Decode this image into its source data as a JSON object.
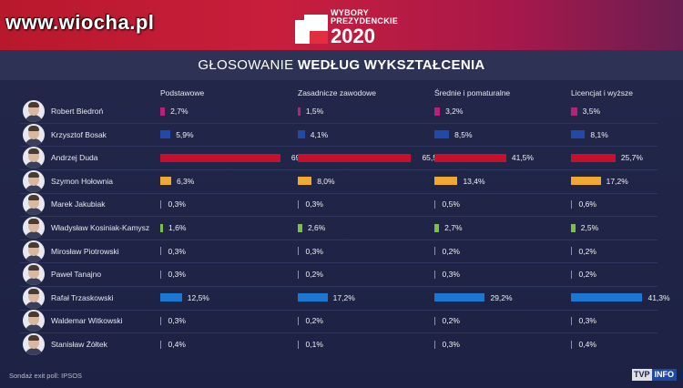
{
  "watermark": "www.wiocha.pl",
  "logo": {
    "line1": "WYBORY",
    "line2": "PREZYDENCKIE",
    "year": "2020"
  },
  "title": {
    "regular": "GŁOSOWANIE ",
    "bold": "WEDŁUG WYKSZTAŁCENIA"
  },
  "source": "Sondaż exit poll: IPSOS",
  "broadcaster": {
    "tv": "TVP",
    "info": "INFO"
  },
  "colors": {
    "Robert Biedroń": "#b8207a",
    "Krzysztof Bosak": "#1f4aa8",
    "Andrzej Duda": "#c8102e",
    "Szymon Hołownia": "#f0a830",
    "Władysław Kosiniak-Kamysz": "#7cc242",
    "Rafał Trzaskowski": "#1b78d2",
    "default": "#8a8fb0"
  },
  "chart_data": {
    "type": "bar",
    "title": "GŁOSOWANIE WEDŁUG WYKSZTAŁCENIA",
    "categories": [
      "Robert Biedroń",
      "Krzysztof Bosak",
      "Andrzej Duda",
      "Szymon Hołownia",
      "Marek Jakubiak",
      "Władysław Kosiniak-Kamysz",
      "Mirosław Piotrowski",
      "Paweł Tanajno",
      "Rafał Trzaskowski",
      "Waldemar Witkowski",
      "Stanisław Żółtek"
    ],
    "unit": "%",
    "series": [
      {
        "name": "Podstawowe",
        "values": [
          2.7,
          5.9,
          69.4,
          6.3,
          0.3,
          1.6,
          0.3,
          0.3,
          12.5,
          0.3,
          0.4
        ],
        "labels": [
          "2,7%",
          "5,9%",
          "69,4%",
          "6,3%",
          "0,3%",
          "1,6%",
          "0,3%",
          "0,3%",
          "12,5%",
          "0,3%",
          "0,4%"
        ]
      },
      {
        "name": "Zasadnicze zawodowe",
        "values": [
          1.5,
          4.1,
          65.5,
          8.0,
          0.3,
          2.6,
          0.3,
          0.2,
          17.2,
          0.2,
          0.1
        ],
        "labels": [
          "1,5%",
          "4,1%",
          "65,5%",
          "8,0%",
          "0,3%",
          "2,6%",
          "0,3%",
          "0,2%",
          "17,2%",
          "0,2%",
          "0,1%"
        ]
      },
      {
        "name": "Średnie i pomaturalne",
        "values": [
          3.2,
          8.5,
          41.5,
          13.4,
          0.5,
          2.7,
          0.2,
          0.3,
          29.2,
          0.2,
          0.3
        ],
        "labels": [
          "3,2%",
          "8,5%",
          "41,5%",
          "13,4%",
          "0,5%",
          "2,7%",
          "0,2%",
          "0,3%",
          "29,2%",
          "0,2%",
          "0,3%"
        ]
      },
      {
        "name": "Licencjat i wyższe",
        "values": [
          3.5,
          8.1,
          25.7,
          17.2,
          0.6,
          2.5,
          0.2,
          0.2,
          41.3,
          0.3,
          0.4
        ],
        "labels": [
          "3,5%",
          "8,1%",
          "25,7%",
          "17,2%",
          "0,6%",
          "2,5%",
          "0,2%",
          "0,2%",
          "41,3%",
          "0,3%",
          "0,4%"
        ]
      }
    ]
  }
}
